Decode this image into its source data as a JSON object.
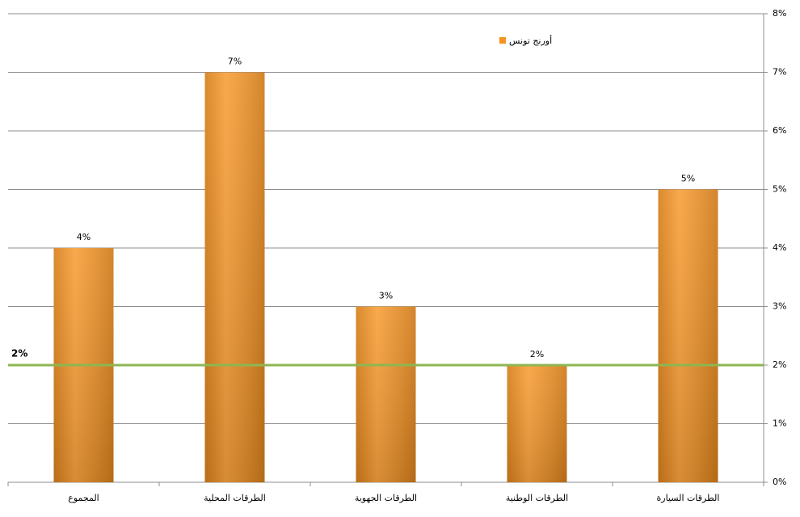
{
  "chart_data": {
    "type": "bar",
    "categories": [
      "المجموع",
      "الطرقات المحلية",
      "الطرقات الجهوية",
      "الطرقات الوطنية",
      "الطرقات السيارة"
    ],
    "series": [
      {
        "name": "أورنج تونس",
        "color": "#f7921e",
        "values": [
          4,
          7,
          3,
          2,
          5
        ],
        "value_labels": [
          "4%",
          "7%",
          "3%",
          "2%",
          "5%"
        ]
      }
    ],
    "ylim": [
      0,
      8
    ],
    "yticks": [
      {
        "value": 0,
        "label": "0%"
      },
      {
        "value": 1,
        "label": "1%"
      },
      {
        "value": 2,
        "label": "2%"
      },
      {
        "value": 3,
        "label": "3%"
      },
      {
        "value": 4,
        "label": "4%"
      },
      {
        "value": 5,
        "label": "5%"
      },
      {
        "value": 6,
        "label": "6%"
      },
      {
        "value": 7,
        "label": "7%"
      },
      {
        "value": 8,
        "label": "8%"
      }
    ],
    "grid": true,
    "reference_line": {
      "value": 2,
      "label": "2%",
      "color": "#8db651"
    }
  }
}
